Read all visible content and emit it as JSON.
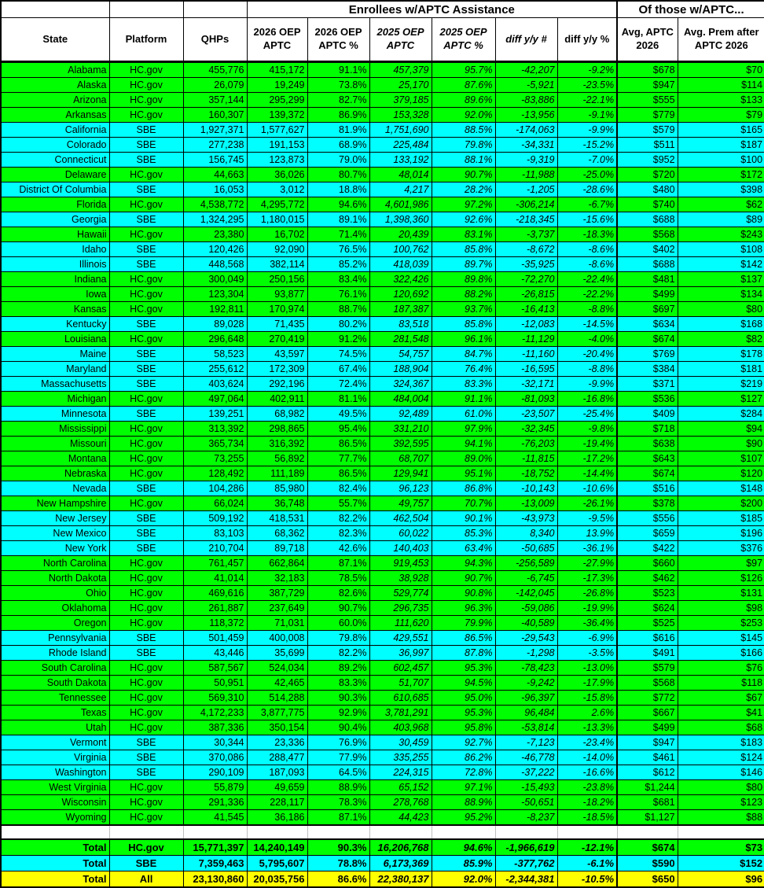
{
  "colors": {
    "green": "#00FF00",
    "cyan": "#00FFFF",
    "yellow": "#FFFF00",
    "gray": "#C8C8C8"
  },
  "header": {
    "group_enrollees": "Enrollees w/APTC Assistance",
    "group_of_those": "Of those w/APTC...",
    "columns": [
      "State",
      "Platform",
      "QHPs",
      "2026 OEP APTC",
      "2026 OEP APTC %",
      "2025 OEP APTC",
      "2025 OEP APTC %",
      "diff y/y #",
      "diff y/y %",
      "Avg, APTC 2026",
      "Avg. Prem after APTC 2026"
    ]
  },
  "rows": [
    [
      "Alabama",
      "HC.gov",
      "455,776",
      "415,172",
      "91.1%",
      "457,379",
      "95.7%",
      "-42,207",
      "-9.2%",
      "$678",
      "$70"
    ],
    [
      "Alaska",
      "HC.gov",
      "26,079",
      "19,249",
      "73.8%",
      "25,170",
      "87.6%",
      "-5,921",
      "-23.5%",
      "$947",
      "$114"
    ],
    [
      "Arizona",
      "HC.gov",
      "357,144",
      "295,299",
      "82.7%",
      "379,185",
      "89.6%",
      "-83,886",
      "-22.1%",
      "$555",
      "$133"
    ],
    [
      "Arkansas",
      "HC.gov",
      "160,307",
      "139,372",
      "86.9%",
      "153,328",
      "92.0%",
      "-13,956",
      "-9.1%",
      "$779",
      "$79"
    ],
    [
      "California",
      "SBE",
      "1,927,371",
      "1,577,627",
      "81.9%",
      "1,751,690",
      "88.5%",
      "-174,063",
      "-9.9%",
      "$579",
      "$165"
    ],
    [
      "Colorado",
      "SBE",
      "277,238",
      "191,153",
      "68.9%",
      "225,484",
      "79.8%",
      "-34,331",
      "-15.2%",
      "$511",
      "$187"
    ],
    [
      "Connecticut",
      "SBE",
      "156,745",
      "123,873",
      "79.0%",
      "133,192",
      "88.1%",
      "-9,319",
      "-7.0%",
      "$952",
      "$100"
    ],
    [
      "Delaware",
      "HC.gov",
      "44,663",
      "36,026",
      "80.7%",
      "48,014",
      "90.7%",
      "-11,988",
      "-25.0%",
      "$720",
      "$172"
    ],
    [
      "District Of Columbia",
      "SBE",
      "16,053",
      "3,012",
      "18.8%",
      "4,217",
      "28.2%",
      "-1,205",
      "-28.6%",
      "$480",
      "$398"
    ],
    [
      "Florida",
      "HC.gov",
      "4,538,772",
      "4,295,772",
      "94.6%",
      "4,601,986",
      "97.2%",
      "-306,214",
      "-6.7%",
      "$740",
      "$62"
    ],
    [
      "Georgia",
      "SBE",
      "1,324,295",
      "1,180,015",
      "89.1%",
      "1,398,360",
      "92.6%",
      "-218,345",
      "-15.6%",
      "$688",
      "$89"
    ],
    [
      "Hawaii",
      "HC.gov",
      "23,380",
      "16,702",
      "71.4%",
      "20,439",
      "83.1%",
      "-3,737",
      "-18.3%",
      "$568",
      "$243"
    ],
    [
      "Idaho",
      "SBE",
      "120,426",
      "92,090",
      "76.5%",
      "100,762",
      "85.8%",
      "-8,672",
      "-8.6%",
      "$402",
      "$108"
    ],
    [
      "Illinois",
      "SBE",
      "448,568",
      "382,114",
      "85.2%",
      "418,039",
      "89.7%",
      "-35,925",
      "-8.6%",
      "$688",
      "$142"
    ],
    [
      "Indiana",
      "HC.gov",
      "300,049",
      "250,156",
      "83.4%",
      "322,426",
      "89.8%",
      "-72,270",
      "-22.4%",
      "$481",
      "$137"
    ],
    [
      "Iowa",
      "HC.gov",
      "123,304",
      "93,877",
      "76.1%",
      "120,692",
      "88.2%",
      "-26,815",
      "-22.2%",
      "$499",
      "$134"
    ],
    [
      "Kansas",
      "HC.gov",
      "192,811",
      "170,974",
      "88.7%",
      "187,387",
      "93.7%",
      "-16,413",
      "-8.8%",
      "$697",
      "$80"
    ],
    [
      "Kentucky",
      "SBE",
      "89,028",
      "71,435",
      "80.2%",
      "83,518",
      "85.8%",
      "-12,083",
      "-14.5%",
      "$634",
      "$168"
    ],
    [
      "Louisiana",
      "HC.gov",
      "296,648",
      "270,419",
      "91.2%",
      "281,548",
      "96.1%",
      "-11,129",
      "-4.0%",
      "$674",
      "$82"
    ],
    [
      "Maine",
      "SBE",
      "58,523",
      "43,597",
      "74.5%",
      "54,757",
      "84.7%",
      "-11,160",
      "-20.4%",
      "$769",
      "$178"
    ],
    [
      "Maryland",
      "SBE",
      "255,612",
      "172,309",
      "67.4%",
      "188,904",
      "76.4%",
      "-16,595",
      "-8.8%",
      "$384",
      "$181"
    ],
    [
      "Massachusetts",
      "SBE",
      "403,624",
      "292,196",
      "72.4%",
      "324,367",
      "83.3%",
      "-32,171",
      "-9.9%",
      "$371",
      "$219"
    ],
    [
      "Michigan",
      "HC.gov",
      "497,064",
      "402,911",
      "81.1%",
      "484,004",
      "91.1%",
      "-81,093",
      "-16.8%",
      "$536",
      "$127"
    ],
    [
      "Minnesota",
      "SBE",
      "139,251",
      "68,982",
      "49.5%",
      "92,489",
      "61.0%",
      "-23,507",
      "-25.4%",
      "$409",
      "$284"
    ],
    [
      "Mississippi",
      "HC.gov",
      "313,392",
      "298,865",
      "95.4%",
      "331,210",
      "97.9%",
      "-32,345",
      "-9.8%",
      "$718",
      "$94"
    ],
    [
      "Missouri",
      "HC.gov",
      "365,734",
      "316,392",
      "86.5%",
      "392,595",
      "94.1%",
      "-76,203",
      "-19.4%",
      "$638",
      "$90"
    ],
    [
      "Montana",
      "HC.gov",
      "73,255",
      "56,892",
      "77.7%",
      "68,707",
      "89.0%",
      "-11,815",
      "-17.2%",
      "$643",
      "$107"
    ],
    [
      "Nebraska",
      "HC.gov",
      "128,492",
      "111,189",
      "86.5%",
      "129,941",
      "95.1%",
      "-18,752",
      "-14.4%",
      "$674",
      "$120"
    ],
    [
      "Nevada",
      "SBE",
      "104,286",
      "85,980",
      "82.4%",
      "96,123",
      "86.8%",
      "-10,143",
      "-10.6%",
      "$516",
      "$148"
    ],
    [
      "New Hampshire",
      "HC.gov",
      "66,024",
      "36,748",
      "55.7%",
      "49,757",
      "70.7%",
      "-13,009",
      "-26.1%",
      "$378",
      "$200"
    ],
    [
      "New Jersey",
      "SBE",
      "509,192",
      "418,531",
      "82.2%",
      "462,504",
      "90.1%",
      "-43,973",
      "-9.5%",
      "$556",
      "$185"
    ],
    [
      "New Mexico",
      "SBE",
      "83,103",
      "68,362",
      "82.3%",
      "60,022",
      "85.3%",
      "8,340",
      "13.9%",
      "$659",
      "$196"
    ],
    [
      "New York",
      "SBE",
      "210,704",
      "89,718",
      "42.6%",
      "140,403",
      "63.4%",
      "-50,685",
      "-36.1%",
      "$422",
      "$376"
    ],
    [
      "North Carolina",
      "HC.gov",
      "761,457",
      "662,864",
      "87.1%",
      "919,453",
      "94.3%",
      "-256,589",
      "-27.9%",
      "$660",
      "$97"
    ],
    [
      "North Dakota",
      "HC.gov",
      "41,014",
      "32,183",
      "78.5%",
      "38,928",
      "90.7%",
      "-6,745",
      "-17.3%",
      "$462",
      "$126"
    ],
    [
      "Ohio",
      "HC.gov",
      "469,616",
      "387,729",
      "82.6%",
      "529,774",
      "90.8%",
      "-142,045",
      "-26.8%",
      "$523",
      "$131"
    ],
    [
      "Oklahoma",
      "HC.gov",
      "261,887",
      "237,649",
      "90.7%",
      "296,735",
      "96.3%",
      "-59,086",
      "-19.9%",
      "$624",
      "$98"
    ],
    [
      "Oregon",
      "HC.gov",
      "118,372",
      "71,031",
      "60.0%",
      "111,620",
      "79.9%",
      "-40,589",
      "-36.4%",
      "$525",
      "$253"
    ],
    [
      "Pennsylvania",
      "SBE",
      "501,459",
      "400,008",
      "79.8%",
      "429,551",
      "86.5%",
      "-29,543",
      "-6.9%",
      "$616",
      "$145"
    ],
    [
      "Rhode Island",
      "SBE",
      "43,446",
      "35,699",
      "82.2%",
      "36,997",
      "87.8%",
      "-1,298",
      "-3.5%",
      "$491",
      "$166"
    ],
    [
      "South Carolina",
      "HC.gov",
      "587,567",
      "524,034",
      "89.2%",
      "602,457",
      "95.3%",
      "-78,423",
      "-13.0%",
      "$579",
      "$76"
    ],
    [
      "South Dakota",
      "HC.gov",
      "50,951",
      "42,465",
      "83.3%",
      "51,707",
      "94.5%",
      "-9,242",
      "-17.9%",
      "$568",
      "$118"
    ],
    [
      "Tennessee",
      "HC.gov",
      "569,310",
      "514,288",
      "90.3%",
      "610,685",
      "95.0%",
      "-96,397",
      "-15.8%",
      "$772",
      "$67"
    ],
    [
      "Texas",
      "HC.gov",
      "4,172,233",
      "3,877,775",
      "92.9%",
      "3,781,291",
      "95.3%",
      "96,484",
      "2.6%",
      "$667",
      "$41"
    ],
    [
      "Utah",
      "HC.gov",
      "387,336",
      "350,154",
      "90.4%",
      "403,968",
      "95.8%",
      "-53,814",
      "-13.3%",
      "$499",
      "$68"
    ],
    [
      "Vermont",
      "SBE",
      "30,344",
      "23,336",
      "76.9%",
      "30,459",
      "92.7%",
      "-7,123",
      "-23.4%",
      "$947",
      "$183"
    ],
    [
      "Virginia",
      "SBE",
      "370,086",
      "288,477",
      "77.9%",
      "335,255",
      "86.2%",
      "-46,778",
      "-14.0%",
      "$461",
      "$124"
    ],
    [
      "Washington",
      "SBE",
      "290,109",
      "187,093",
      "64.5%",
      "224,315",
      "72.8%",
      "-37,222",
      "-16.6%",
      "$612",
      "$146"
    ],
    [
      "West Virginia",
      "HC.gov",
      "55,879",
      "49,659",
      "88.9%",
      "65,152",
      "97.1%",
      "-15,493",
      "-23.8%",
      "$1,244",
      "$80"
    ],
    [
      "Wisconsin",
      "HC.gov",
      "291,336",
      "228,117",
      "78.3%",
      "278,768",
      "88.9%",
      "-50,651",
      "-18.2%",
      "$681",
      "$123"
    ],
    [
      "Wyoming",
      "HC.gov",
      "41,545",
      "36,186",
      "87.1%",
      "44,423",
      "95.2%",
      "-8,237",
      "-18.5%",
      "$1,127",
      "$88"
    ]
  ],
  "totals": [
    [
      "Total",
      "HC.gov",
      "15,771,397",
      "14,240,149",
      "90.3%",
      "16,206,768",
      "94.6%",
      "-1,966,619",
      "-12.1%",
      "$674",
      "$73"
    ],
    [
      "Total",
      "SBE",
      "7,359,463",
      "5,795,607",
      "78.8%",
      "6,173,369",
      "85.9%",
      "-377,762",
      "-6.1%",
      "$590",
      "$152"
    ],
    [
      "Total",
      "All",
      "23,130,860",
      "20,035,756",
      "86.6%",
      "22,380,137",
      "92.0%",
      "-2,344,381",
      "-10.5%",
      "$650",
      "$96"
    ]
  ]
}
